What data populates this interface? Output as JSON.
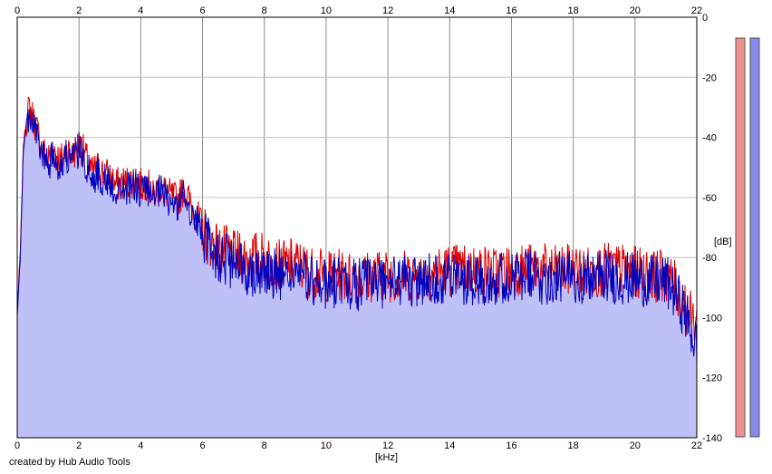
{
  "chart_data": {
    "type": "line",
    "title": "",
    "xlabel": "[kHz]",
    "ylabel": "[dB]",
    "xlim": [
      0,
      22
    ],
    "ylim": [
      -140,
      0
    ],
    "x_ticks": [
      0,
      2,
      4,
      6,
      8,
      10,
      12,
      14,
      16,
      18,
      20,
      22
    ],
    "y_ticks": [
      0,
      -20,
      -40,
      -60,
      -80,
      -100,
      -120,
      -140
    ],
    "y_tick_labels": [
      "0",
      "-20",
      "-40",
      "-60",
      "-80",
      "-100",
      "-120",
      "-140"
    ],
    "grid": true,
    "colors": {
      "left": "#e00000",
      "right": "#0000c0",
      "fill": "#c0c0f8",
      "left_meter": "#f09090",
      "right_meter": "#8888e8"
    },
    "series": [
      {
        "key": "left",
        "x": [
          0,
          0.1,
          0.2,
          0.3,
          0.4,
          0.5,
          0.6,
          0.8,
          1.0,
          1.2,
          1.4,
          1.6,
          1.8,
          2.0,
          2.2,
          2.4,
          2.6,
          2.8,
          3.0,
          3.2,
          3.4,
          3.6,
          3.8,
          4.0,
          4.2,
          4.4,
          4.6,
          4.8,
          5.0,
          5.2,
          5.4,
          5.6,
          5.8,
          6.0,
          6.2,
          6.4,
          6.6,
          6.8,
          7.0,
          7.5,
          8.0,
          8.5,
          9.0,
          9.5,
          10,
          10.5,
          11,
          11.5,
          12,
          12.5,
          13,
          13.5,
          14,
          14.5,
          15,
          15.5,
          16,
          16.5,
          17,
          17.5,
          18,
          18.5,
          19,
          19.5,
          20,
          20.5,
          21,
          21.3,
          21.6,
          21.8,
          22
        ],
        "y": [
          -98,
          -78,
          -42,
          -34,
          -30,
          -33,
          -36,
          -44,
          -47,
          -44,
          -48,
          -44,
          -46,
          -42,
          -46,
          -52,
          -50,
          -52,
          -53,
          -56,
          -55,
          -55,
          -54,
          -56,
          -55,
          -60,
          -56,
          -58,
          -60,
          -61,
          -57,
          -62,
          -66,
          -70,
          -74,
          -76,
          -78,
          -78,
          -80,
          -80,
          -80,
          -83,
          -82,
          -85,
          -86,
          -86,
          -87,
          -86,
          -86,
          -86,
          -86,
          -85,
          -84,
          -84,
          -84,
          -85,
          -84,
          -84,
          -84,
          -85,
          -84,
          -85,
          -84,
          -84,
          -85,
          -86,
          -86,
          -90,
          -95,
          -100,
          -102
        ]
      },
      {
        "key": "right",
        "x": [
          0,
          0.1,
          0.2,
          0.3,
          0.4,
          0.5,
          0.6,
          0.8,
          1.0,
          1.2,
          1.4,
          1.6,
          1.8,
          2.0,
          2.2,
          2.4,
          2.6,
          2.8,
          3.0,
          3.2,
          3.4,
          3.6,
          3.8,
          4.0,
          4.2,
          4.4,
          4.6,
          4.8,
          5.0,
          5.2,
          5.4,
          5.6,
          5.8,
          6.0,
          6.2,
          6.4,
          6.6,
          6.8,
          7.0,
          7.5,
          8.0,
          8.5,
          9.0,
          9.5,
          10,
          10.5,
          11,
          11.5,
          12,
          12.5,
          13,
          13.5,
          14,
          14.5,
          15,
          15.5,
          16,
          16.5,
          17,
          17.5,
          18,
          18.5,
          19,
          19.5,
          20,
          20.5,
          21,
          21.3,
          21.6,
          21.8,
          22
        ],
        "y": [
          -100,
          -80,
          -44,
          -36,
          -32,
          -34,
          -38,
          -46,
          -49,
          -46,
          -50,
          -46,
          -48,
          -44,
          -48,
          -54,
          -52,
          -54,
          -55,
          -58,
          -57,
          -57,
          -56,
          -58,
          -57,
          -62,
          -58,
          -60,
          -62,
          -63,
          -59,
          -64,
          -68,
          -72,
          -76,
          -78,
          -80,
          -81,
          -83,
          -84,
          -84,
          -86,
          -85,
          -88,
          -89,
          -88,
          -89,
          -88,
          -88,
          -88,
          -88,
          -87,
          -87,
          -87,
          -87,
          -87,
          -87,
          -86,
          -87,
          -87,
          -86,
          -87,
          -86,
          -87,
          -87,
          -88,
          -88,
          -92,
          -98,
          -104,
          -110
        ]
      }
    ]
  },
  "labels": {
    "x_unit": "[kHz]",
    "y_unit": "[dB]",
    "credit": "created by Hub Audio Tools"
  }
}
